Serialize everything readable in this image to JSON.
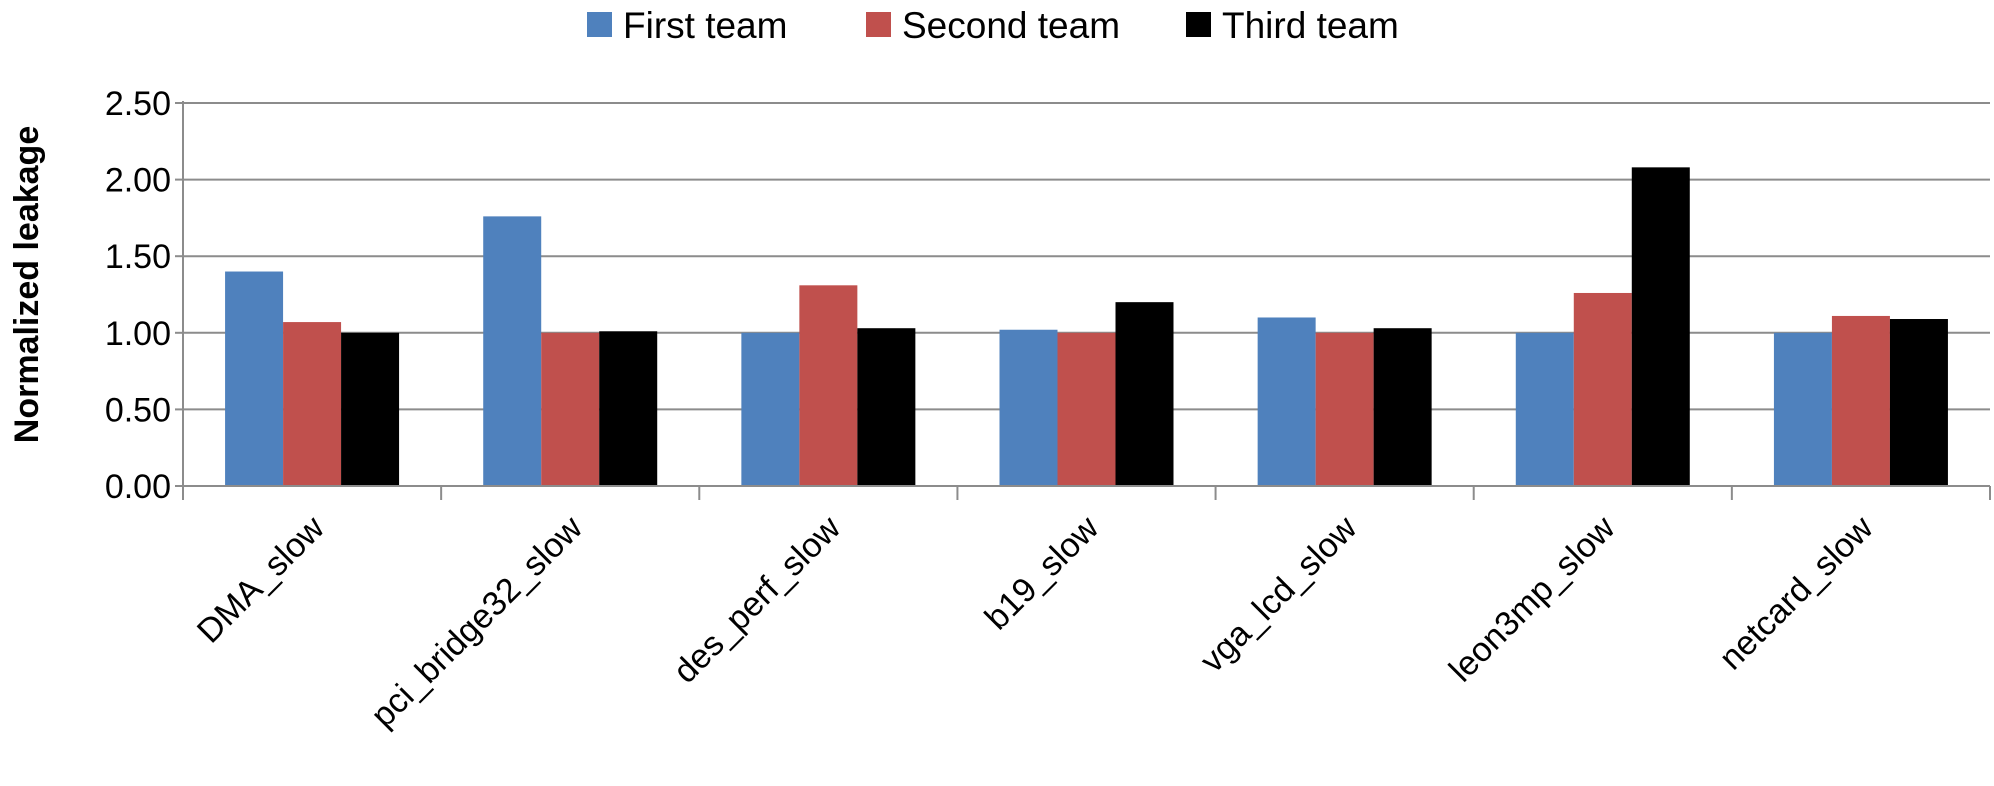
{
  "chart_data": {
    "type": "bar",
    "categories": [
      "DMA_slow",
      "pci_bridge32_slow",
      "des_perf_slow",
      "b19_slow",
      "vga_lcd_slow",
      "leon3mp_slow",
      "netcard_slow"
    ],
    "series": [
      {
        "name": "First team",
        "color": "#4f81bd",
        "values": [
          1.4,
          1.76,
          1.0,
          1.02,
          1.1,
          1.0,
          1.0
        ]
      },
      {
        "name": "Second team",
        "color": "#c0504d",
        "values": [
          1.07,
          1.0,
          1.31,
          1.0,
          1.0,
          1.26,
          1.11
        ]
      },
      {
        "name": "Third team",
        "color": "#000000",
        "values": [
          1.0,
          1.01,
          1.03,
          1.2,
          1.03,
          2.08,
          1.09
        ]
      }
    ],
    "title": "",
    "xlabel": "",
    "ylabel": "Normalized leakage",
    "ylim": [
      0,
      2.5
    ],
    "yticks": [
      "0.00",
      "0.50",
      "1.00",
      "1.50",
      "2.00",
      "2.50"
    ],
    "grid": true,
    "legend_position": "top-center"
  }
}
